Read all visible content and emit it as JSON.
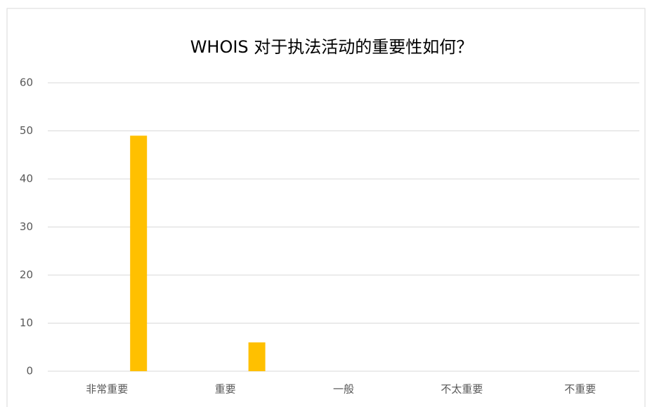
{
  "chart_data": {
    "type": "bar",
    "title": "WHOIS 对于执法活动的重要性如何？",
    "categories": [
      "非常重要",
      "重要",
      "一般",
      "不太重要",
      "不重要"
    ],
    "values": [
      49,
      6,
      0,
      0,
      0
    ],
    "color": "#ffc000",
    "ylim": [
      0,
      60
    ],
    "yticks": [
      0,
      10,
      20,
      30,
      40,
      50,
      60
    ],
    "grid": true
  }
}
